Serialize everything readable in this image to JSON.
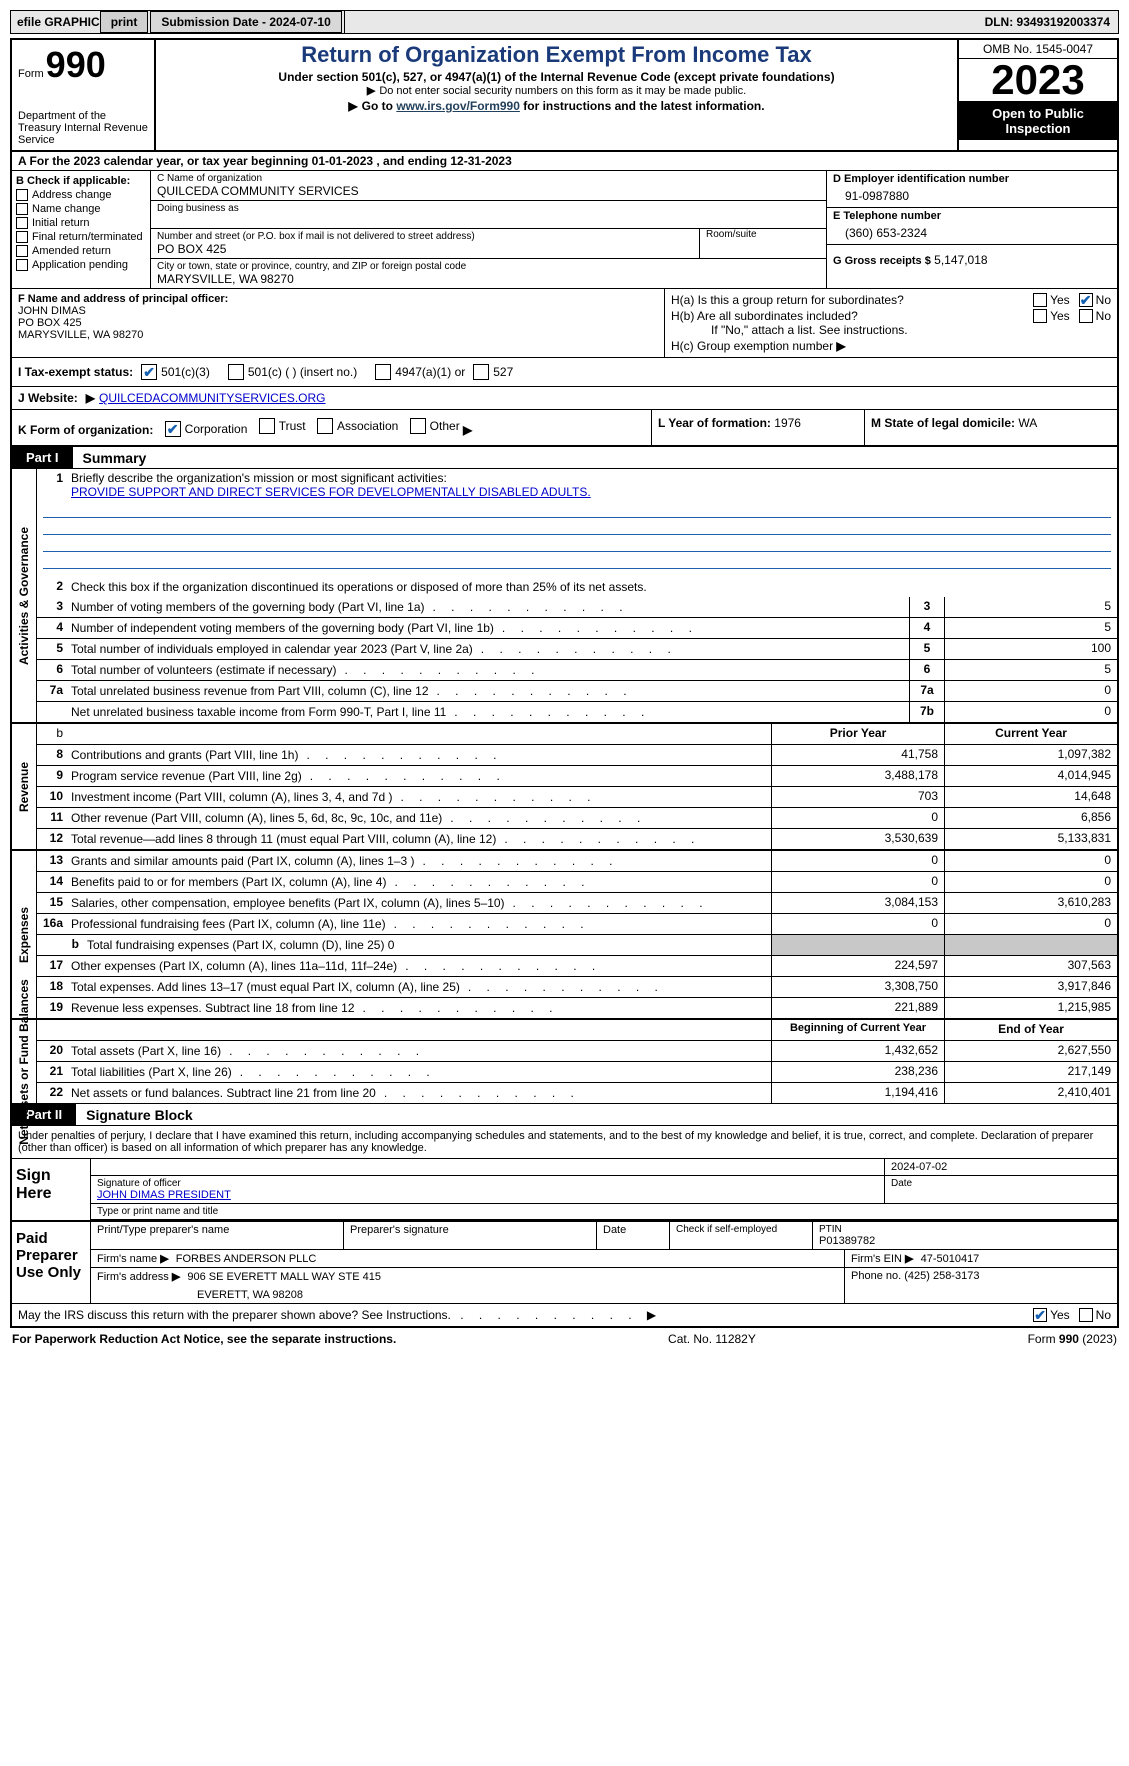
{
  "colors": {
    "link": "#0000cc",
    "darklink": "#23415c",
    "check": "#1862b3",
    "ruleline": "#2060b0"
  },
  "topbar": {
    "efile_label": "efile GRAPHIC",
    "print_btn": "print",
    "submission": "Submission Date - 2024-07-10",
    "dln": "DLN: 93493192003374"
  },
  "header": {
    "form_word": "Form",
    "form_num": "990",
    "dept": "Department of the Treasury Internal Revenue Service",
    "title": "Return of Organization Exempt From Income Tax",
    "sub1": "Under section 501(c), 527, or 4947(a)(1) of the Internal Revenue Code (except private foundations)",
    "sub2": "Do not enter social security numbers on this form as it may be made public.",
    "sub3_pre": "Go to ",
    "sub3_link": "www.irs.gov/Form990",
    "sub3_post": " for instructions and the latest information.",
    "omb": "OMB No. 1545-0047",
    "year": "2023",
    "open": "Open to Public Inspection"
  },
  "row_a": "A  For the 2023 calendar year, or tax year beginning 01-01-2023   , and ending 12-31-2023",
  "section_b": {
    "head": "B Check if applicable:",
    "items": [
      "Address change",
      "Name change",
      "Initial return",
      "Final return/terminated",
      "Amended return",
      "Application pending"
    ]
  },
  "section_c": {
    "name_lab": "C Name of organization",
    "name_val": "QUILCEDA COMMUNITY SERVICES",
    "dba_lab": "Doing business as",
    "dba_val": "",
    "addr_lab": "Number and street (or P.O. box if mail is not delivered to street address)",
    "room_lab": "Room/suite",
    "addr_val": "PO BOX 425",
    "city_lab": "City or town, state or province, country, and ZIP or foreign postal code",
    "city_val": "MARYSVILLE, WA  98270"
  },
  "section_d": {
    "lab": "D Employer identification number",
    "val": "91-0987880"
  },
  "section_e": {
    "lab": "E Telephone number",
    "val": "(360) 653-2324"
  },
  "section_g": {
    "lab": "G Gross receipts $",
    "val": "5,147,018"
  },
  "section_f": {
    "lab": "F  Name and address of principal officer:",
    "l1": "JOHN DIMAS",
    "l2": "PO BOX 425",
    "l3": "MARYSVILLE, WA  98270"
  },
  "section_h": {
    "a_lab": "H(a)  Is this a group return for subordinates?",
    "a_yes": "Yes",
    "a_no": "No",
    "b_lab": "H(b)  Are all subordinates included?",
    "b_note": "If \"No,\" attach a list. See instructions.",
    "c_lab": "H(c)  Group exemption number",
    "c_arrow": "▶"
  },
  "section_i": {
    "lab": "I   Tax-exempt status:",
    "opt1": "501(c)(3)",
    "opt2": "501(c) (   ) (insert no.)",
    "opt3": "4947(a)(1) or",
    "opt4": "527"
  },
  "section_j": {
    "lab": "J   Website:",
    "arrow": "▶",
    "val": "QUILCEDACOMMUNITYSERVICES.ORG"
  },
  "section_k": {
    "lab": "K Form of organization:",
    "opts": [
      "Corporation",
      "Trust",
      "Association",
      "Other"
    ],
    "arrow": "▶"
  },
  "section_l": {
    "lab": "L Year of formation:",
    "val": "1976"
  },
  "section_m": {
    "lab": "M State of legal domicile:",
    "val": "WA"
  },
  "part1": {
    "tab": "Part I",
    "title": "Summary"
  },
  "governance": {
    "side": "Activities & Governance",
    "l1_num": "1",
    "l1": "Briefly describe the organization's mission or most significant activities:",
    "l1_val": "PROVIDE SUPPORT AND DIRECT SERVICES FOR DEVELOPMENTALLY DISABLED ADULTS.",
    "l2_num": "2",
    "l2": "Check this box        if the organization discontinued its operations or disposed of more than 25% of its net assets.",
    "rows": [
      {
        "num": "3",
        "desc": "Number of voting members of the governing body (Part VI, line 1a)",
        "ref": "3",
        "val": "5"
      },
      {
        "num": "4",
        "desc": "Number of independent voting members of the governing body (Part VI, line 1b)",
        "ref": "4",
        "val": "5"
      },
      {
        "num": "5",
        "desc": "Total number of individuals employed in calendar year 2023 (Part V, line 2a)",
        "ref": "5",
        "val": "100"
      },
      {
        "num": "6",
        "desc": "Total number of volunteers (estimate if necessary)",
        "ref": "6",
        "val": "5"
      },
      {
        "num": "7a",
        "desc": "Total unrelated business revenue from Part VIII, column (C), line 12",
        "ref": "7a",
        "val": "0"
      },
      {
        "num": "",
        "desc": "Net unrelated business taxable income from Form 990-T, Part I, line 11",
        "ref": "7b",
        "val": "0"
      }
    ]
  },
  "revenue": {
    "side": "Revenue",
    "head_b": "b",
    "head_prior": "Prior Year",
    "head_curr": "Current Year",
    "rows": [
      {
        "num": "8",
        "desc": "Contributions and grants (Part VIII, line 1h)",
        "prior": "41,758",
        "curr": "1,097,382"
      },
      {
        "num": "9",
        "desc": "Program service revenue (Part VIII, line 2g)",
        "prior": "3,488,178",
        "curr": "4,014,945"
      },
      {
        "num": "10",
        "desc": "Investment income (Part VIII, column (A), lines 3, 4, and 7d )",
        "prior": "703",
        "curr": "14,648"
      },
      {
        "num": "11",
        "desc": "Other revenue (Part VIII, column (A), lines 5, 6d, 8c, 9c, 10c, and 11e)",
        "prior": "0",
        "curr": "6,856"
      },
      {
        "num": "12",
        "desc": "Total revenue—add lines 8 through 11 (must equal Part VIII, column (A), line 12)",
        "prior": "3,530,639",
        "curr": "5,133,831"
      }
    ]
  },
  "expenses": {
    "side": "Expenses",
    "rows": [
      {
        "num": "13",
        "desc": "Grants and similar amounts paid (Part IX, column (A), lines 1–3 )",
        "prior": "0",
        "curr": "0"
      },
      {
        "num": "14",
        "desc": "Benefits paid to or for members (Part IX, column (A), line 4)",
        "prior": "0",
        "curr": "0"
      },
      {
        "num": "15",
        "desc": "Salaries, other compensation, employee benefits (Part IX, column (A), lines 5–10)",
        "prior": "3,084,153",
        "curr": "3,610,283"
      },
      {
        "num": "16a",
        "desc": "Professional fundraising fees (Part IX, column (A), line 11e)",
        "prior": "0",
        "curr": "0"
      },
      {
        "num": "b",
        "desc": "Total fundraising expenses (Part IX, column (D), line 25) 0",
        "prior": "",
        "curr": "",
        "gray": true,
        "indent": true
      },
      {
        "num": "17",
        "desc": "Other expenses (Part IX, column (A), lines 11a–11d, 11f–24e)",
        "prior": "224,597",
        "curr": "307,563"
      },
      {
        "num": "18",
        "desc": "Total expenses. Add lines 13–17 (must equal Part IX, column (A), line 25)",
        "prior": "3,308,750",
        "curr": "3,917,846"
      },
      {
        "num": "19",
        "desc": "Revenue less expenses. Subtract line 18 from line 12",
        "prior": "221,889",
        "curr": "1,215,985"
      }
    ]
  },
  "netassets": {
    "side": "Net Assets or Fund Balances",
    "head_begin": "Beginning of Current Year",
    "head_end": "End of Year",
    "rows": [
      {
        "num": "20",
        "desc": "Total assets (Part X, line 16)",
        "prior": "1,432,652",
        "curr": "2,627,550"
      },
      {
        "num": "21",
        "desc": "Total liabilities (Part X, line 26)",
        "prior": "238,236",
        "curr": "217,149"
      },
      {
        "num": "22",
        "desc": "Net assets or fund balances. Subtract line 21 from line 20",
        "prior": "1,194,416",
        "curr": "2,410,401"
      }
    ]
  },
  "part2": {
    "tab": "Part II",
    "title": "Signature Block"
  },
  "penalties": "Under penalties of perjury, I declare that I have examined this return, including accompanying schedules and statements, and to the best of my knowledge and belief, it is true, correct, and complete. Declaration of preparer (other than officer) is based on all information of which preparer has any knowledge.",
  "sign": {
    "left": "Sign Here",
    "date": "2024-07-02",
    "sig_lab": "Signature of officer",
    "date_lab": "Date",
    "officer": "JOHN DIMAS  PRESIDENT",
    "type_lab": "Type or print name and title"
  },
  "preparer": {
    "left": "Paid Preparer Use Only",
    "h1": "Print/Type preparer's name",
    "h2": "Preparer's signature",
    "h3": "Date",
    "h4": "Check          if self-employed",
    "h5_lab": "PTIN",
    "h5_val": "P01389782",
    "firm_lab": "Firm's name",
    "arrow": "▶",
    "firm_val": "FORBES ANDERSON PLLC",
    "ein_lab": "Firm's EIN",
    "ein_arrow": "▶",
    "ein_val": "47-5010417",
    "addr_lab": "Firm's address",
    "addr_arrow": "▶",
    "addr_l1": "906 SE EVERETT MALL WAY STE 415",
    "addr_l2": "EVERETT, WA  98208",
    "phone_lab": "Phone no.",
    "phone_val": "(425) 258-3173"
  },
  "discuss": {
    "text": "May the IRS discuss this return with the preparer shown above? See Instructions.",
    "yes": "Yes",
    "no": "No"
  },
  "footer": {
    "left": "For Paperwork Reduction Act Notice, see the separate instructions.",
    "mid": "Cat. No. 11282Y",
    "right_pre": "Form ",
    "right_bold": "990",
    "right_post": " (2023)"
  }
}
